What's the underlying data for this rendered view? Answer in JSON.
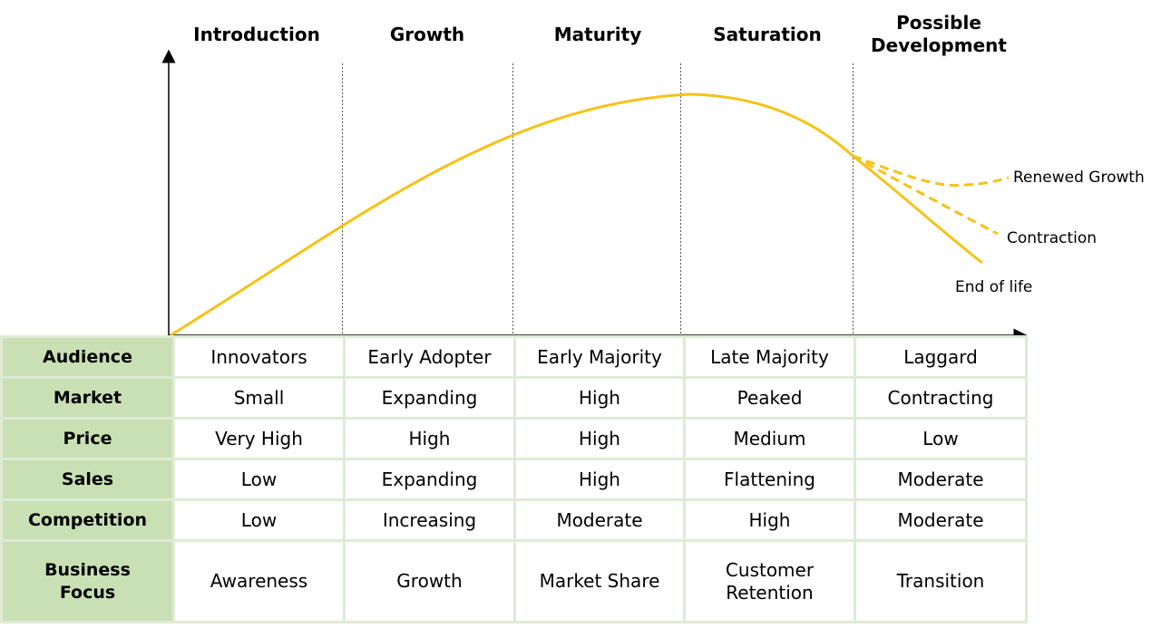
{
  "stages": [
    {
      "label": "Introduction"
    },
    {
      "label": "Growth"
    },
    {
      "label": "Maturity"
    },
    {
      "label": "Saturation"
    },
    {
      "label": "Possible\nDevelopment"
    }
  ],
  "outcomes": {
    "renewed": "Renewed Growth",
    "contraction": "Contraction",
    "end": "End of life"
  },
  "colors": {
    "curve": "#f5c218",
    "header_fill": "#c9e0b5",
    "grid_border": "#dfead6"
  },
  "table": {
    "rows": [
      {
        "header": "Audience",
        "cells": [
          "Innovators",
          "Early Adopter",
          "Early Majority",
          "Late Majority",
          "Laggard"
        ]
      },
      {
        "header": "Market",
        "cells": [
          "Small",
          "Expanding",
          "High",
          "Peaked",
          "Contracting"
        ]
      },
      {
        "header": "Price",
        "cells": [
          "Very High",
          "High",
          "High",
          "Medium",
          "Low"
        ]
      },
      {
        "header": "Sales",
        "cells": [
          "Low",
          "Expanding",
          "High",
          "Flattening",
          "Moderate"
        ]
      },
      {
        "header": "Competition",
        "cells": [
          "Low",
          "Increasing",
          "Moderate",
          "High",
          "Moderate"
        ]
      },
      {
        "header": "Business\nFocus",
        "cells": [
          "Awareness",
          "Growth",
          "Market Share",
          "Customer\nRetention",
          "Transition"
        ]
      }
    ]
  }
}
